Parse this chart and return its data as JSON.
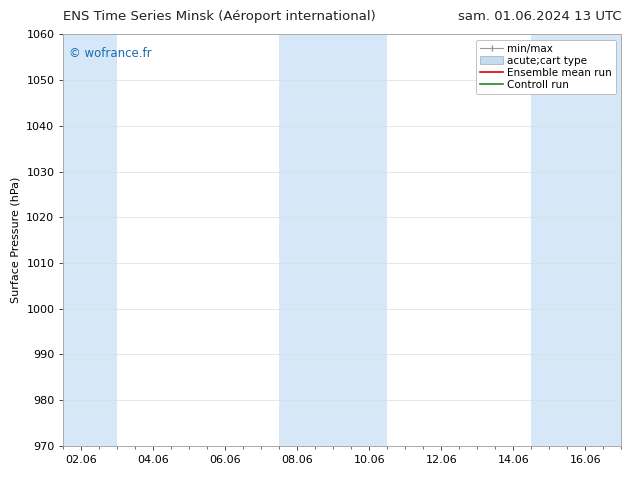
{
  "title_left": "ENS Time Series Minsk (Aéroport international)",
  "title_right": "sam. 01.06.2024 13 UTC",
  "ylabel": "Surface Pressure (hPa)",
  "ylim": [
    970,
    1060
  ],
  "yticks": [
    970,
    980,
    990,
    1000,
    1010,
    1020,
    1030,
    1040,
    1050,
    1060
  ],
  "xtick_labels": [
    "02.06",
    "04.06",
    "06.06",
    "08.06",
    "10.06",
    "12.06",
    "14.06",
    "16.06"
  ],
  "xtick_positions": [
    2,
    4,
    6,
    8,
    10,
    12,
    14,
    16
  ],
  "xlim": [
    1.5,
    17.0
  ],
  "shaded_bands": [
    {
      "x_start": 1.5,
      "x_end": 3.0,
      "color": "#d6e8f7"
    },
    {
      "x_start": 7.5,
      "x_end": 10.5,
      "color": "#d6e8f7"
    },
    {
      "x_start": 14.5,
      "x_end": 17.0,
      "color": "#d6e8f7"
    }
  ],
  "watermark": "© wofrance.fr",
  "watermark_color": "#1a6bb5",
  "legend_items": [
    {
      "label": "min/max",
      "color": "#999999",
      "style": "errorbar"
    },
    {
      "label": "acute;cart type",
      "color": "#c5ddf0",
      "style": "box"
    },
    {
      "label": "Ensemble mean run",
      "color": "#dd0000",
      "style": "line"
    },
    {
      "label": "Controll run",
      "color": "#228B22",
      "style": "line"
    }
  ],
  "bg_color": "#ffffff",
  "plot_bg_color": "#ffffff",
  "grid_color": "#dddddd",
  "title_fontsize": 9.5,
  "axis_fontsize": 8,
  "tick_fontsize": 8,
  "legend_fontsize": 7.5,
  "watermark_fontsize": 8.5
}
